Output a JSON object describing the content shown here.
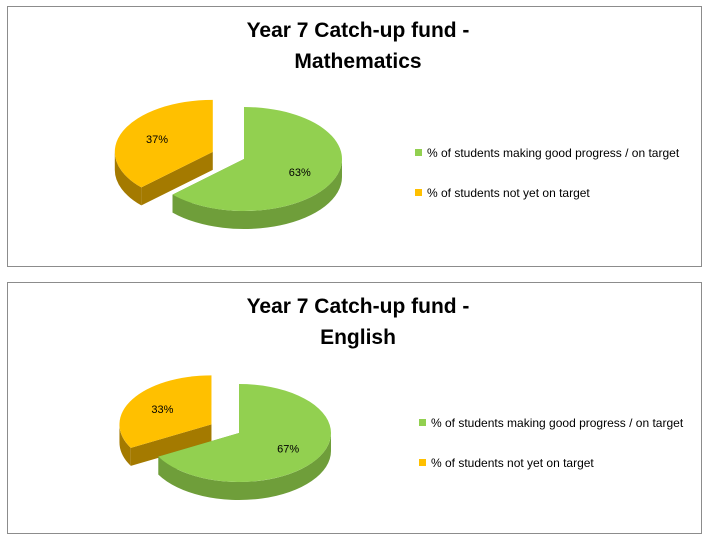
{
  "colors": {
    "green_top": "#92d050",
    "green_side": "#6f9e3a",
    "orange_top": "#ffc000",
    "orange_side": "#a47a00",
    "outline": "#8c8c8c"
  },
  "chart_data": [
    {
      "type": "pie",
      "style": "3d-exploded",
      "title": [
        "Year 7 Catch-up fund -",
        "Mathematics"
      ],
      "series": [
        {
          "name": "% of students making good progress / on target",
          "value": 63,
          "label": "63%",
          "color": "#92d050"
        },
        {
          "name": "% of students not yet on target",
          "value": 37,
          "label": "37%",
          "color": "#ffc000"
        }
      ],
      "legend_position": "right"
    },
    {
      "type": "pie",
      "style": "3d-exploded",
      "title": [
        "Year 7 Catch-up fund -",
        "English"
      ],
      "series": [
        {
          "name": "% of students making good progress / on target",
          "value": 67,
          "label": "67%",
          "color": "#92d050"
        },
        {
          "name": "% of students not yet on target",
          "value": 33,
          "label": "33%",
          "color": "#ffc000"
        }
      ],
      "legend_position": "right"
    }
  ]
}
